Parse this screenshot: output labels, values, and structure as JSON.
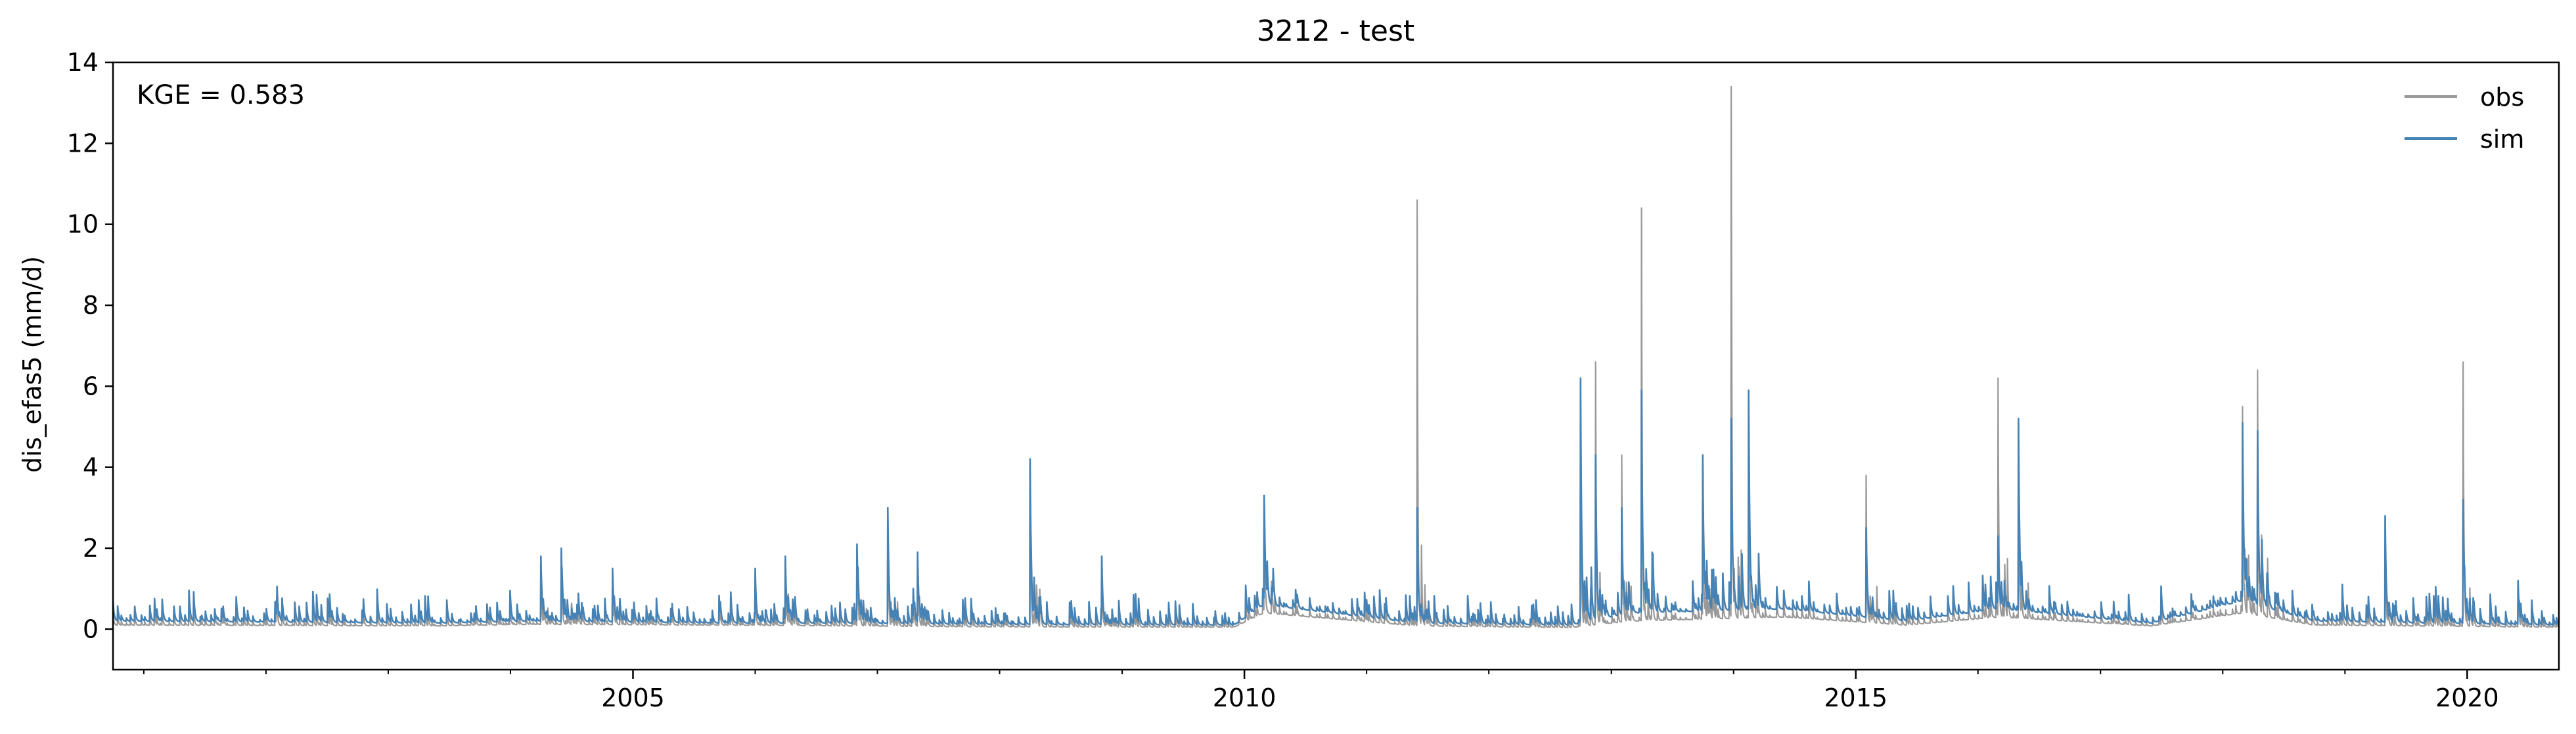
{
  "chart_data": {
    "type": "line",
    "title": "3212 - test",
    "ylabel": "dis_efas5 (mm/d)",
    "xlabel": "",
    "annotation": "KGE = 0.583",
    "xlim": [
      "2000-10-01",
      "2020-10-01"
    ],
    "ylim": [
      -1,
      14
    ],
    "yticks": [
      0,
      2,
      4,
      6,
      8,
      10,
      12,
      14
    ],
    "xticks": [
      {
        "date": "2005-01-01",
        "label": "2005"
      },
      {
        "date": "2010-01-01",
        "label": "2010"
      },
      {
        "date": "2015-01-01",
        "label": "2015"
      },
      {
        "date": "2020-01-01",
        "label": "2020"
      }
    ],
    "legend_position": "top-right",
    "grid": false,
    "series": [
      {
        "name": "obs",
        "color": "#999999",
        "baseflow": [
          [
            "2000-10-01",
            0.1
          ],
          [
            "2003-06-01",
            0.08
          ],
          [
            "2004-03-01",
            0.12
          ],
          [
            "2005-10-01",
            0.1
          ],
          [
            "2006-10-01",
            0.08
          ],
          [
            "2007-10-01",
            0.06
          ],
          [
            "2009-12-01",
            0.05
          ],
          [
            "2010-03-01",
            0.4
          ],
          [
            "2011-06-01",
            0.08
          ],
          [
            "2012-09-01",
            0.04
          ],
          [
            "2013-03-01",
            0.2
          ],
          [
            "2014-06-01",
            0.3
          ],
          [
            "2015-06-01",
            0.1
          ],
          [
            "2016-03-01",
            0.3
          ],
          [
            "2017-06-01",
            0.08
          ],
          [
            "2018-03-01",
            0.4
          ],
          [
            "2018-10-01",
            0.1
          ],
          [
            "2020-10-01",
            0.05
          ]
        ],
        "peaks": [
          [
            "2001-08-01",
            0.5
          ],
          [
            "2002-02-01",
            0.6
          ],
          [
            "2004-04-01",
            1.6
          ],
          [
            "2004-06-01",
            1.9
          ],
          [
            "2004-11-01",
            1.5
          ],
          [
            "2006-01-01",
            1.4
          ],
          [
            "2006-04-01",
            1.7
          ],
          [
            "2006-11-01",
            2.0
          ],
          [
            "2007-02-01",
            2.9
          ],
          [
            "2007-05-01",
            1.8
          ],
          [
            "2008-04-01",
            4.1
          ],
          [
            "2008-11-01",
            1.8
          ],
          [
            "2010-03-01",
            3.2
          ],
          [
            "2011-06-01",
            10.6
          ],
          [
            "2012-10-01",
            5.9
          ],
          [
            "2012-11-15",
            6.6
          ],
          [
            "2013-02-01",
            4.3
          ],
          [
            "2013-04-01",
            10.4
          ],
          [
            "2013-10-01",
            4.3
          ],
          [
            "2013-12-25",
            13.4
          ],
          [
            "2014-02-15",
            5.8
          ],
          [
            "2015-02-01",
            3.8
          ],
          [
            "2016-03-01",
            6.2
          ],
          [
            "2016-05-01",
            5.1
          ],
          [
            "2018-03-01",
            5.5
          ],
          [
            "2018-04-15",
            6.4
          ],
          [
            "2019-05-01",
            2.8
          ],
          [
            "2019-12-20",
            6.6
          ],
          [
            "2020-06-01",
            1.1
          ]
        ]
      },
      {
        "name": "sim",
        "color": "#4682b4",
        "baseflow": [
          [
            "2000-10-01",
            0.2
          ],
          [
            "2003-06-01",
            0.15
          ],
          [
            "2004-03-01",
            0.2
          ],
          [
            "2005-10-01",
            0.15
          ],
          [
            "2006-10-01",
            0.15
          ],
          [
            "2007-10-01",
            0.12
          ],
          [
            "2009-12-01",
            0.1
          ],
          [
            "2010-03-01",
            0.6
          ],
          [
            "2011-06-01",
            0.15
          ],
          [
            "2012-09-01",
            0.1
          ],
          [
            "2013-03-01",
            0.4
          ],
          [
            "2014-06-01",
            0.5
          ],
          [
            "2015-06-01",
            0.2
          ],
          [
            "2016-03-01",
            0.5
          ],
          [
            "2017-06-01",
            0.15
          ],
          [
            "2018-03-01",
            0.7
          ],
          [
            "2018-10-01",
            0.2
          ],
          [
            "2020-10-01",
            0.1
          ]
        ],
        "peaks": [
          [
            "2001-08-01",
            0.5
          ],
          [
            "2002-02-01",
            0.7
          ],
          [
            "2004-04-01",
            1.8
          ],
          [
            "2004-06-01",
            2.0
          ],
          [
            "2004-11-01",
            1.5
          ],
          [
            "2006-01-01",
            1.5
          ],
          [
            "2006-04-01",
            1.8
          ],
          [
            "2006-11-01",
            2.1
          ],
          [
            "2007-02-01",
            3.0
          ],
          [
            "2007-05-01",
            1.9
          ],
          [
            "2008-04-01",
            4.2
          ],
          [
            "2008-11-01",
            1.8
          ],
          [
            "2010-03-01",
            3.3
          ],
          [
            "2011-06-01",
            3.0
          ],
          [
            "2012-10-01",
            6.2
          ],
          [
            "2012-11-15",
            4.3
          ],
          [
            "2013-02-01",
            3.0
          ],
          [
            "2013-04-01",
            5.9
          ],
          [
            "2013-10-01",
            4.3
          ],
          [
            "2013-12-25",
            5.2
          ],
          [
            "2014-02-15",
            5.9
          ],
          [
            "2015-02-01",
            2.5
          ],
          [
            "2016-03-01",
            2.3
          ],
          [
            "2016-05-01",
            5.2
          ],
          [
            "2018-03-01",
            5.1
          ],
          [
            "2018-04-15",
            4.9
          ],
          [
            "2019-05-01",
            2.8
          ],
          [
            "2019-12-20",
            3.2
          ],
          [
            "2020-06-01",
            1.2
          ]
        ]
      }
    ]
  }
}
